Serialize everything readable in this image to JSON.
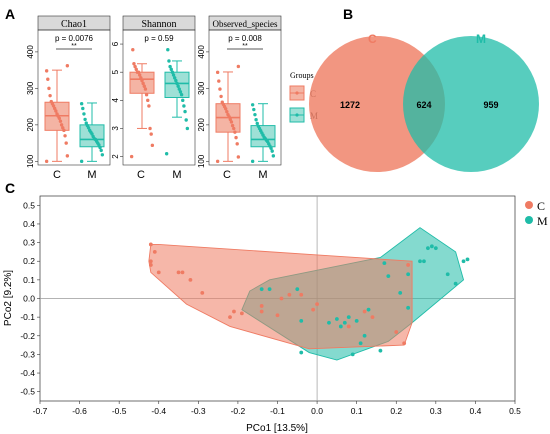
{
  "panel_labels": {
    "a": "A",
    "b": "B",
    "c": "C"
  },
  "colors": {
    "C": "#ef7b63",
    "M": "#1fbca8",
    "grid": "#cfcfcf",
    "strip": "#d9d9d9"
  },
  "chart_data": [
    {
      "type": "box",
      "panel": "A",
      "facets": [
        {
          "title": "Chao1",
          "categories": [
            "C",
            "M"
          ],
          "ylim": [
            90,
            460
          ],
          "yticks": [
            "100",
            "200",
            "300",
            "400"
          ],
          "annotation": "p = 0.0076",
          "significance": "**",
          "boxes": [
            {
              "group": "C",
              "min": 100,
              "q1": 185,
              "median": 225,
              "q3": 262,
              "max": 350
            },
            {
              "group": "M",
              "min": 100,
              "q1": 140,
              "median": 160,
              "q3": 200,
              "max": 260
            }
          ],
          "points": {
            "C": [
              100,
              115,
              150,
              170,
              185,
              192,
              200,
              210,
              218,
              224,
              230,
              238,
              245,
              252,
              258,
              264,
              280,
              300,
              325,
              348,
              362
            ],
            "M": [
              100,
              118,
              130,
              138,
              145,
              150,
              155,
              160,
              162,
              168,
              175,
              180,
              185,
              192,
              198,
              205,
              215,
              230,
              245,
              258
            ]
          }
        },
        {
          "title": "Shannon",
          "categories": [
            "C",
            "M"
          ],
          "ylim": [
            1.7,
            6.5
          ],
          "yticks": [
            "2",
            "3",
            "4",
            "5",
            "6"
          ],
          "annotation": "p = 0.59",
          "significance": "",
          "boxes": [
            {
              "group": "C",
              "min": 3.0,
              "q1": 4.25,
              "median": 4.75,
              "q3": 5.0,
              "max": 5.3
            },
            {
              "group": "M",
              "min": 3.4,
              "q1": 4.1,
              "median": 4.6,
              "q3": 5.0,
              "max": 5.4
            }
          ],
          "points": {
            "C": [
              2.0,
              2.4,
              2.8,
              3.0,
              3.8,
              4.0,
              4.2,
              4.4,
              4.5,
              4.6,
              4.7,
              4.8,
              4.9,
              5.0,
              5.0,
              5.1,
              5.2,
              5.3,
              5.8
            ],
            "M": [
              2.1,
              3.0,
              3.3,
              3.6,
              3.8,
              4.0,
              4.2,
              4.3,
              4.4,
              4.5,
              4.6,
              4.7,
              4.8,
              4.9,
              5.0,
              5.1,
              5.2,
              5.4,
              5.8
            ]
          }
        },
        {
          "title": "Observed_species",
          "categories": [
            "C",
            "M"
          ],
          "ylim": [
            90,
            460
          ],
          "yticks": [
            "100",
            "200",
            "300",
            "400"
          ],
          "annotation": "p = 0.008",
          "significance": "**",
          "boxes": [
            {
              "group": "C",
              "min": 100,
              "q1": 180,
              "median": 220,
              "q3": 258,
              "max": 345
            },
            {
              "group": "M",
              "min": 100,
              "q1": 140,
              "median": 160,
              "q3": 198,
              "max": 258
            }
          ],
          "points": {
            "C": [
              100,
              112,
              148,
              165,
              180,
              190,
              198,
              208,
              215,
              222,
              228,
              236,
              244,
              250,
              256,
              262,
              278,
              298,
              320,
              344,
              360
            ],
            "M": [
              100,
              115,
              128,
              136,
              142,
              148,
              154,
              158,
              162,
              166,
              172,
              178,
              184,
              190,
              196,
              204,
              214,
              228,
              242,
              255
            ]
          }
        }
      ],
      "legend": {
        "title": "Groups",
        "entries": [
          "C",
          "M"
        ]
      }
    },
    {
      "type": "venn",
      "panel": "B",
      "sets": [
        "C",
        "M"
      ],
      "only_C": "1272",
      "shared": "624",
      "only_M": "959"
    },
    {
      "type": "scatter",
      "panel": "C",
      "xlabel": "PCo1 [13.5%]",
      "ylabel": "PCo2 [9.2%]",
      "xlim": [
        -0.7,
        0.5
      ],
      "ylim": [
        -0.55,
        0.55
      ],
      "xticks": [
        "-0.7",
        "-0.6",
        "-0.5",
        "-0.4",
        "-0.3",
        "-0.2",
        "-0.1",
        "0.0",
        "0.1",
        "0.2",
        "0.3",
        "0.4",
        "0.5"
      ],
      "yticks": [
        "0.5",
        "0.4",
        "0.3",
        "0.2",
        "0.1",
        "0.0",
        "-0.1",
        "-0.2",
        "-0.3",
        "-0.4",
        "-0.5"
      ],
      "legend": [
        "C",
        "M"
      ],
      "hulls": {
        "C": [
          [
            -0.42,
            0.29
          ],
          [
            -0.4,
            0.29
          ],
          [
            0.24,
            0.2
          ],
          [
            0.24,
            -0.13
          ],
          [
            0.22,
            -0.25
          ],
          [
            -0.02,
            -0.27
          ],
          [
            -0.22,
            -0.15
          ],
          [
            -0.33,
            -0.03
          ],
          [
            -0.42,
            0.14
          ],
          [
            -0.425,
            0.2
          ]
        ],
        "M": [
          [
            -0.19,
            -0.06
          ],
          [
            -0.17,
            0.04
          ],
          [
            -0.12,
            0.1
          ],
          [
            0.16,
            0.22
          ],
          [
            0.26,
            0.38
          ],
          [
            0.35,
            0.25
          ],
          [
            0.37,
            0.1
          ],
          [
            0.24,
            -0.13
          ],
          [
            0.18,
            -0.23
          ],
          [
            0.05,
            -0.33
          ],
          [
            -0.02,
            -0.29
          ]
        ]
      },
      "points": {
        "C": [
          [
            -0.42,
            0.29
          ],
          [
            -0.41,
            0.25
          ],
          [
            -0.42,
            0.2
          ],
          [
            -0.42,
            0.18
          ],
          [
            -0.4,
            0.14
          ],
          [
            -0.35,
            0.14
          ],
          [
            -0.34,
            0.14
          ],
          [
            -0.32,
            0.1
          ],
          [
            -0.29,
            0.03
          ],
          [
            -0.22,
            -0.1
          ],
          [
            -0.21,
            -0.07
          ],
          [
            -0.19,
            -0.08
          ],
          [
            -0.14,
            -0.04
          ],
          [
            -0.14,
            -0.07
          ],
          [
            -0.1,
            -0.09
          ],
          [
            -0.09,
            0.0
          ],
          [
            -0.07,
            0.02
          ],
          [
            -0.04,
            0.02
          ],
          [
            -0.01,
            -0.06
          ],
          [
            0.0,
            -0.03
          ],
          [
            0.08,
            -0.15
          ],
          [
            0.12,
            -0.07
          ],
          [
            0.14,
            -0.1
          ],
          [
            0.2,
            -0.18
          ],
          [
            0.22,
            -0.24
          ],
          [
            0.23,
            0.18
          ]
        ],
        "M": [
          [
            -0.14,
            0.05
          ],
          [
            -0.12,
            0.05
          ],
          [
            -0.05,
            0.05
          ],
          [
            -0.04,
            -0.12
          ],
          [
            0.03,
            -0.13
          ],
          [
            0.05,
            -0.11
          ],
          [
            0.06,
            -0.15
          ],
          [
            0.07,
            -0.13
          ],
          [
            0.08,
            -0.1
          ],
          [
            0.1,
            -0.12
          ],
          [
            0.12,
            -0.2
          ],
          [
            0.11,
            -0.24
          ],
          [
            0.13,
            -0.06
          ],
          [
            0.17,
            0.19
          ],
          [
            0.18,
            0.12
          ],
          [
            0.21,
            0.03
          ],
          [
            0.23,
            -0.05
          ],
          [
            0.26,
            0.2
          ],
          [
            0.27,
            0.2
          ],
          [
            0.28,
            0.27
          ],
          [
            0.29,
            0.28
          ],
          [
            0.3,
            0.27
          ],
          [
            0.33,
            0.13
          ],
          [
            0.35,
            0.08
          ],
          [
            0.37,
            0.2
          ],
          [
            0.38,
            0.21
          ],
          [
            0.16,
            -0.28
          ],
          [
            0.09,
            -0.3
          ],
          [
            -0.04,
            -0.29
          ],
          [
            0.23,
            0.13
          ]
        ]
      }
    }
  ]
}
